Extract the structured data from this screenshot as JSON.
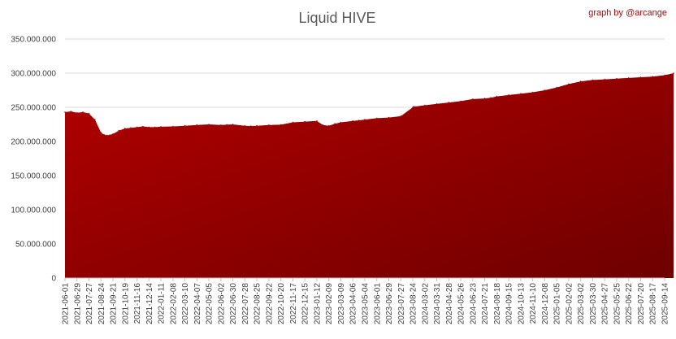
{
  "credit": "graph by @arcange",
  "chart_data": {
    "type": "area",
    "title": "Liquid HIVE",
    "xlabel": "",
    "ylabel": "",
    "ylim": [
      0,
      350000000
    ],
    "yticks": [
      0,
      50000000,
      100000000,
      150000000,
      200000000,
      250000000,
      300000000,
      350000000
    ],
    "ytick_labels": [
      "0",
      "50.000.000",
      "100.000.000",
      "150.000.000",
      "200.000.000",
      "250.000.000",
      "300.000.000",
      "350.000.000"
    ],
    "grid": "horizontal",
    "fill_gradient": [
      "#b30000",
      "#6e0000"
    ],
    "x_tick_labels": [
      "2021-06-01",
      "2021-06-29",
      "2021-07-27",
      "2021-08-24",
      "2021-09-21",
      "2021-10-19",
      "2021-11-16",
      "2021-12-14",
      "2022-01-11",
      "2022-02-08",
      "2022-03-10",
      "2022-04-07",
      "2022-05-05",
      "2022-06-02",
      "2022-06-30",
      "2022-07-28",
      "2022-08-25",
      "2022-09-22",
      "2022-10-20",
      "2022-11-17",
      "2022-12-15",
      "2023-01-12",
      "2023-02-09",
      "2023-03-09",
      "2023-04-06",
      "2023-05-04",
      "2023-06-01",
      "2023-06-29",
      "2023-07-27",
      "2023-08-24",
      "2024-03-02",
      "2024-03-31",
      "2024-04-28",
      "2024-05-26",
      "2024-06-23",
      "2024-07-21",
      "2024-08-18",
      "2024-09-15",
      "2024-10-13",
      "2024-11-10",
      "2024-12-08",
      "2025-01-05",
      "2025-02-02",
      "2025-03-02",
      "2025-03-30",
      "2025-04-27",
      "2025-05-25",
      "2025-06-22",
      "2025-07-20",
      "2025-08-17",
      "2025-09-14"
    ],
    "x": [
      "2021-06-01",
      "2021-06-15",
      "2021-06-29",
      "2021-07-13",
      "2021-07-27",
      "2021-08-10",
      "2021-08-24",
      "2021-08-31",
      "2021-09-07",
      "2021-09-14",
      "2021-09-21",
      "2021-10-05",
      "2021-10-19",
      "2021-11-02",
      "2021-11-16",
      "2021-11-30",
      "2021-12-14",
      "2021-12-28",
      "2022-01-11",
      "2022-02-08",
      "2022-03-10",
      "2022-04-07",
      "2022-05-05",
      "2022-06-02",
      "2022-06-16",
      "2022-06-30",
      "2022-07-28",
      "2022-08-11",
      "2022-08-25",
      "2022-09-22",
      "2022-10-20",
      "2022-11-17",
      "2022-12-15",
      "2023-01-12",
      "2023-01-26",
      "2023-02-09",
      "2023-02-23",
      "2023-03-09",
      "2023-04-06",
      "2023-04-20",
      "2023-05-04",
      "2023-06-01",
      "2023-06-29",
      "2023-07-27",
      "2023-08-24",
      "2023-09-07",
      "2024-03-02",
      "2024-03-31",
      "2024-04-28",
      "2024-05-26",
      "2024-06-23",
      "2024-07-21",
      "2024-08-04",
      "2024-08-18",
      "2024-09-15",
      "2024-10-13",
      "2024-11-10",
      "2024-12-08",
      "2025-01-05",
      "2025-02-02",
      "2025-03-02",
      "2025-03-30",
      "2025-04-27",
      "2025-05-25",
      "2025-06-22",
      "2025-07-20",
      "2025-08-17",
      "2025-09-14",
      "2025-10-05"
    ],
    "values": [
      243000000,
      244000000,
      242000000,
      243000000,
      241000000,
      232000000,
      213000000,
      210000000,
      209000000,
      209500000,
      211000000,
      216000000,
      219000000,
      220000000,
      221000000,
      222000000,
      221000000,
      221000000,
      221500000,
      222000000,
      223000000,
      224000000,
      225000000,
      224000000,
      224500000,
      225000000,
      223000000,
      222500000,
      223000000,
      224000000,
      224500000,
      228000000,
      229000000,
      230000000,
      224000000,
      223000000,
      226000000,
      228000000,
      230000000,
      231000000,
      232000000,
      234000000,
      235000000,
      237000000,
      250000000,
      251000000,
      253000000,
      255000000,
      257000000,
      259000000,
      262000000,
      263000000,
      264000000,
      266000000,
      268000000,
      270000000,
      272000000,
      275000000,
      279000000,
      284000000,
      288000000,
      290000000,
      291000000,
      292000000,
      293000000,
      294000000,
      295000000,
      297000000,
      300000000
    ],
    "series": [
      {
        "name": "",
        "color": "#b30000"
      }
    ]
  }
}
